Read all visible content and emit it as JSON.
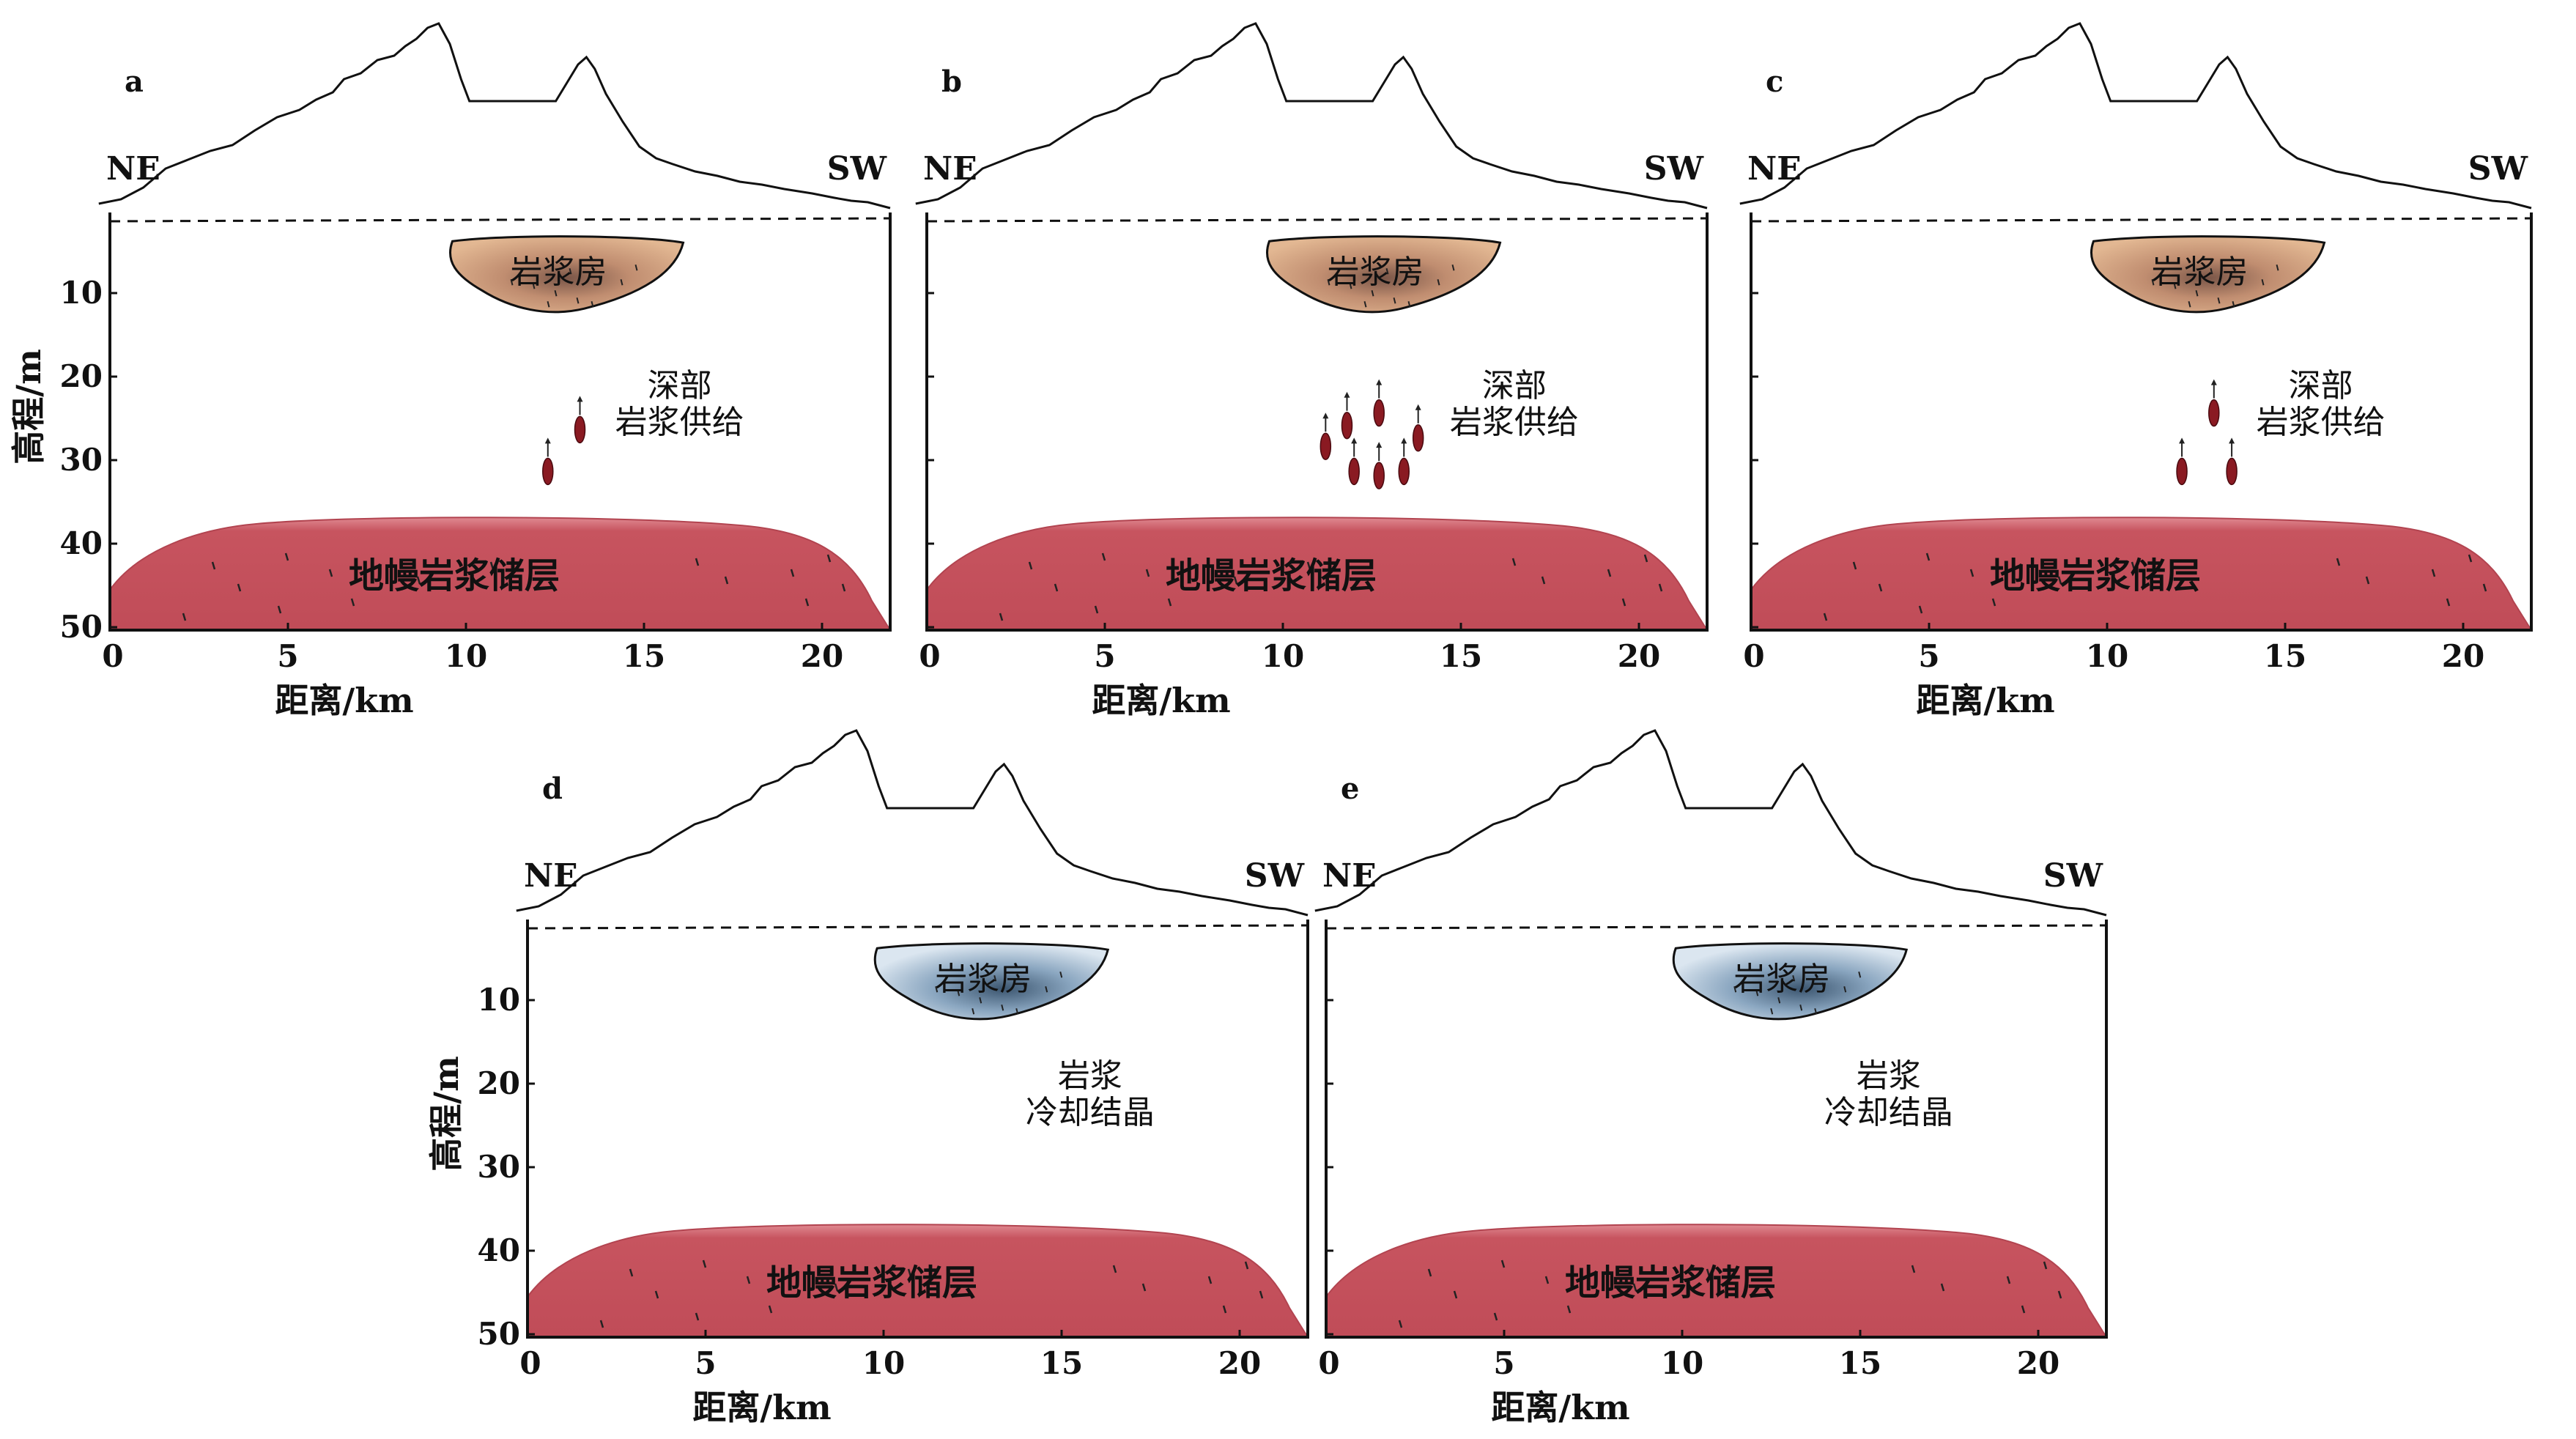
{
  "colors": {
    "mantle": "#c4505c",
    "chamber_hot": "#d9a884",
    "chamber_cold": "#a7bfd6",
    "droplet": "#8a1a22",
    "line": "#111111"
  },
  "axis": {
    "xlabel": "距离/km",
    "ylabel": "高程/m",
    "xticks": [
      0,
      5,
      10,
      15,
      20
    ],
    "yticks": [
      10,
      20,
      30,
      40,
      50
    ]
  },
  "labels": {
    "ne": "NE",
    "sw": "SW",
    "chamber": "岩浆房",
    "mantle": "地幔岩浆储层",
    "deep_supply": [
      "深部",
      "岩浆供给"
    ],
    "cooling": [
      "岩浆",
      "冷却结晶"
    ]
  },
  "panels": [
    {
      "letter": "a",
      "chamber_state": "hot",
      "droplets": 2,
      "annotation": "deep_supply"
    },
    {
      "letter": "b",
      "chamber_state": "hot",
      "droplets": 7,
      "annotation": "deep_supply"
    },
    {
      "letter": "c",
      "chamber_state": "hot",
      "droplets": 3,
      "annotation": "deep_supply"
    },
    {
      "letter": "d",
      "chamber_state": "cold",
      "droplets": 0,
      "annotation": "cooling"
    },
    {
      "letter": "e",
      "chamber_state": "cold",
      "droplets": 0,
      "annotation": "cooling"
    }
  ]
}
